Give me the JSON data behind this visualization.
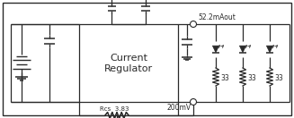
{
  "line_color": "#2a2a2a",
  "box_label1": "Current",
  "box_label2": "Regulator",
  "label_52": "52.2mAout",
  "label_200": "200mV",
  "label_rcs": "Rcs  3.83",
  "label_33": "33",
  "figw": 3.27,
  "figh": 1.32,
  "dpi": 100
}
